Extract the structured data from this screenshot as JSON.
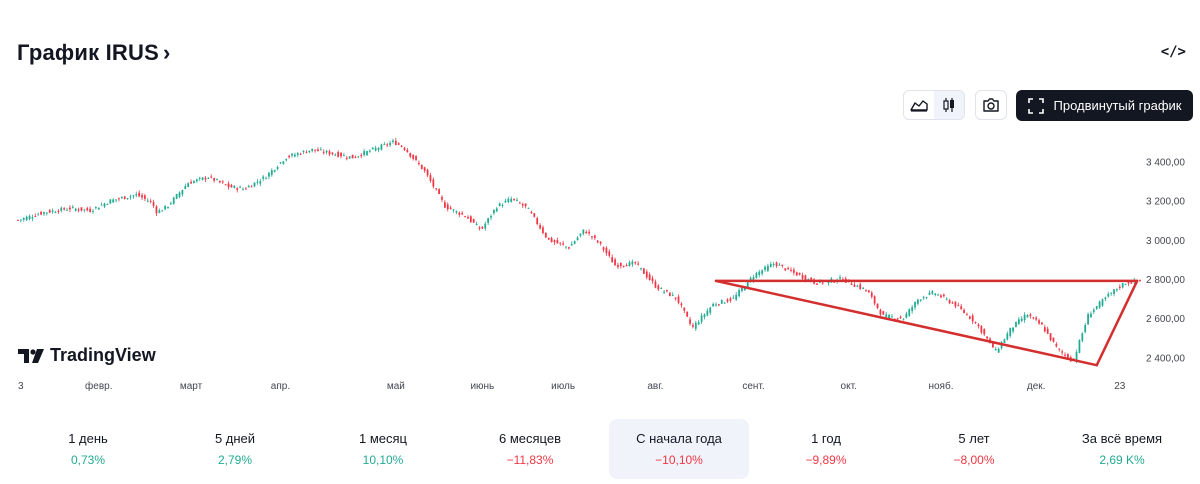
{
  "header": {
    "title": "График IRUS",
    "title_chevron": "›",
    "embed_label": "</>"
  },
  "toolbar": {
    "area_icon": "area-chart-icon",
    "candles_icon": "candlestick-icon",
    "camera_icon": "camera-icon",
    "advanced_label": "Продвинутый график",
    "fullscreen_icon": "fullscreen-icon"
  },
  "brand": {
    "logo_text": "TradingView"
  },
  "colors": {
    "up": "#22ab94",
    "down": "#f23645",
    "trendline": "#d32f2f",
    "axis_text": "#434651"
  },
  "chart_data": {
    "type": "candlestick",
    "title": "",
    "y_ticks": [
      "3 400,00",
      "3 200,00",
      "3 000,00",
      "2 800,00",
      "2 600,00",
      "2 400,00"
    ],
    "y_tick_values": [
      3400,
      3200,
      3000,
      2800,
      2600,
      2400
    ],
    "ylim": [
      2310,
      3560
    ],
    "x_ticks": [
      "3",
      "февр.",
      "март",
      "апр.",
      "май",
      "июнь",
      "июль",
      "авг.",
      "сент.",
      "окт.",
      "нояб.",
      "дек.",
      "23"
    ],
    "x_tick_index": [
      0,
      28,
      60,
      91,
      131,
      161,
      189,
      221,
      255,
      288,
      320,
      353,
      382
    ],
    "n_points": 390,
    "close_path": [
      [
        0,
        3100
      ],
      [
        10,
        3140
      ],
      [
        20,
        3160
      ],
      [
        28,
        3150
      ],
      [
        36,
        3200
      ],
      [
        46,
        3230
      ],
      [
        52,
        3190
      ],
      [
        54,
        3140
      ],
      [
        58,
        3170
      ],
      [
        66,
        3290
      ],
      [
        74,
        3320
      ],
      [
        82,
        3270
      ],
      [
        88,
        3260
      ],
      [
        96,
        3320
      ],
      [
        104,
        3420
      ],
      [
        114,
        3460
      ],
      [
        122,
        3440
      ],
      [
        130,
        3420
      ],
      [
        138,
        3460
      ],
      [
        146,
        3500
      ],
      [
        150,
        3470
      ],
      [
        158,
        3350
      ],
      [
        166,
        3170
      ],
      [
        174,
        3120
      ],
      [
        180,
        3050
      ],
      [
        186,
        3170
      ],
      [
        192,
        3210
      ],
      [
        198,
        3160
      ],
      [
        206,
        3000
      ],
      [
        214,
        2960
      ],
      [
        220,
        3050
      ],
      [
        226,
        2980
      ],
      [
        232,
        2870
      ],
      [
        240,
        2880
      ],
      [
        248,
        2760
      ],
      [
        256,
        2700
      ],
      [
        262,
        2550
      ],
      [
        270,
        2670
      ],
      [
        278,
        2700
      ],
      [
        286,
        2820
      ],
      [
        294,
        2880
      ],
      [
        300,
        2840
      ],
      [
        310,
        2780
      ],
      [
        320,
        2800
      ],
      [
        330,
        2740
      ],
      [
        336,
        2610
      ],
      [
        344,
        2600
      ],
      [
        350,
        2700
      ],
      [
        356,
        2730
      ],
      [
        364,
        2670
      ],
      [
        372,
        2580
      ],
      [
        380,
        2430
      ],
      [
        386,
        2550
      ],
      [
        392,
        2620
      ],
      [
        398,
        2560
      ],
      [
        404,
        2440
      ],
      [
        410,
        2380
      ],
      [
        416,
        2620
      ],
      [
        424,
        2720
      ],
      [
        430,
        2780
      ],
      [
        436,
        2790
      ]
    ],
    "trendlines": [
      {
        "from": [
          242,
          2790
        ],
        "to": [
          388,
          2790
        ]
      },
      {
        "from": [
          242,
          2790
        ],
        "to": [
          374,
          2360
        ]
      },
      {
        "from": [
          374,
          2360
        ],
        "to": [
          388,
          2790
        ]
      }
    ]
  },
  "periods": [
    {
      "label": "1 день",
      "value": "0,73%",
      "direction": "up"
    },
    {
      "label": "5 дней",
      "value": "2,79%",
      "direction": "up"
    },
    {
      "label": "1 месяц",
      "value": "10,10%",
      "direction": "up"
    },
    {
      "label": "6 месяцев",
      "value": "−11,83%",
      "direction": "down"
    },
    {
      "label": "С начала года",
      "value": "−10,10%",
      "direction": "down",
      "active": true
    },
    {
      "label": "1 год",
      "value": "−9,89%",
      "direction": "down"
    },
    {
      "label": "5 лет",
      "value": "−8,00%",
      "direction": "down"
    },
    {
      "label": "За всё время",
      "value": "2,69 K%",
      "direction": "up"
    }
  ]
}
